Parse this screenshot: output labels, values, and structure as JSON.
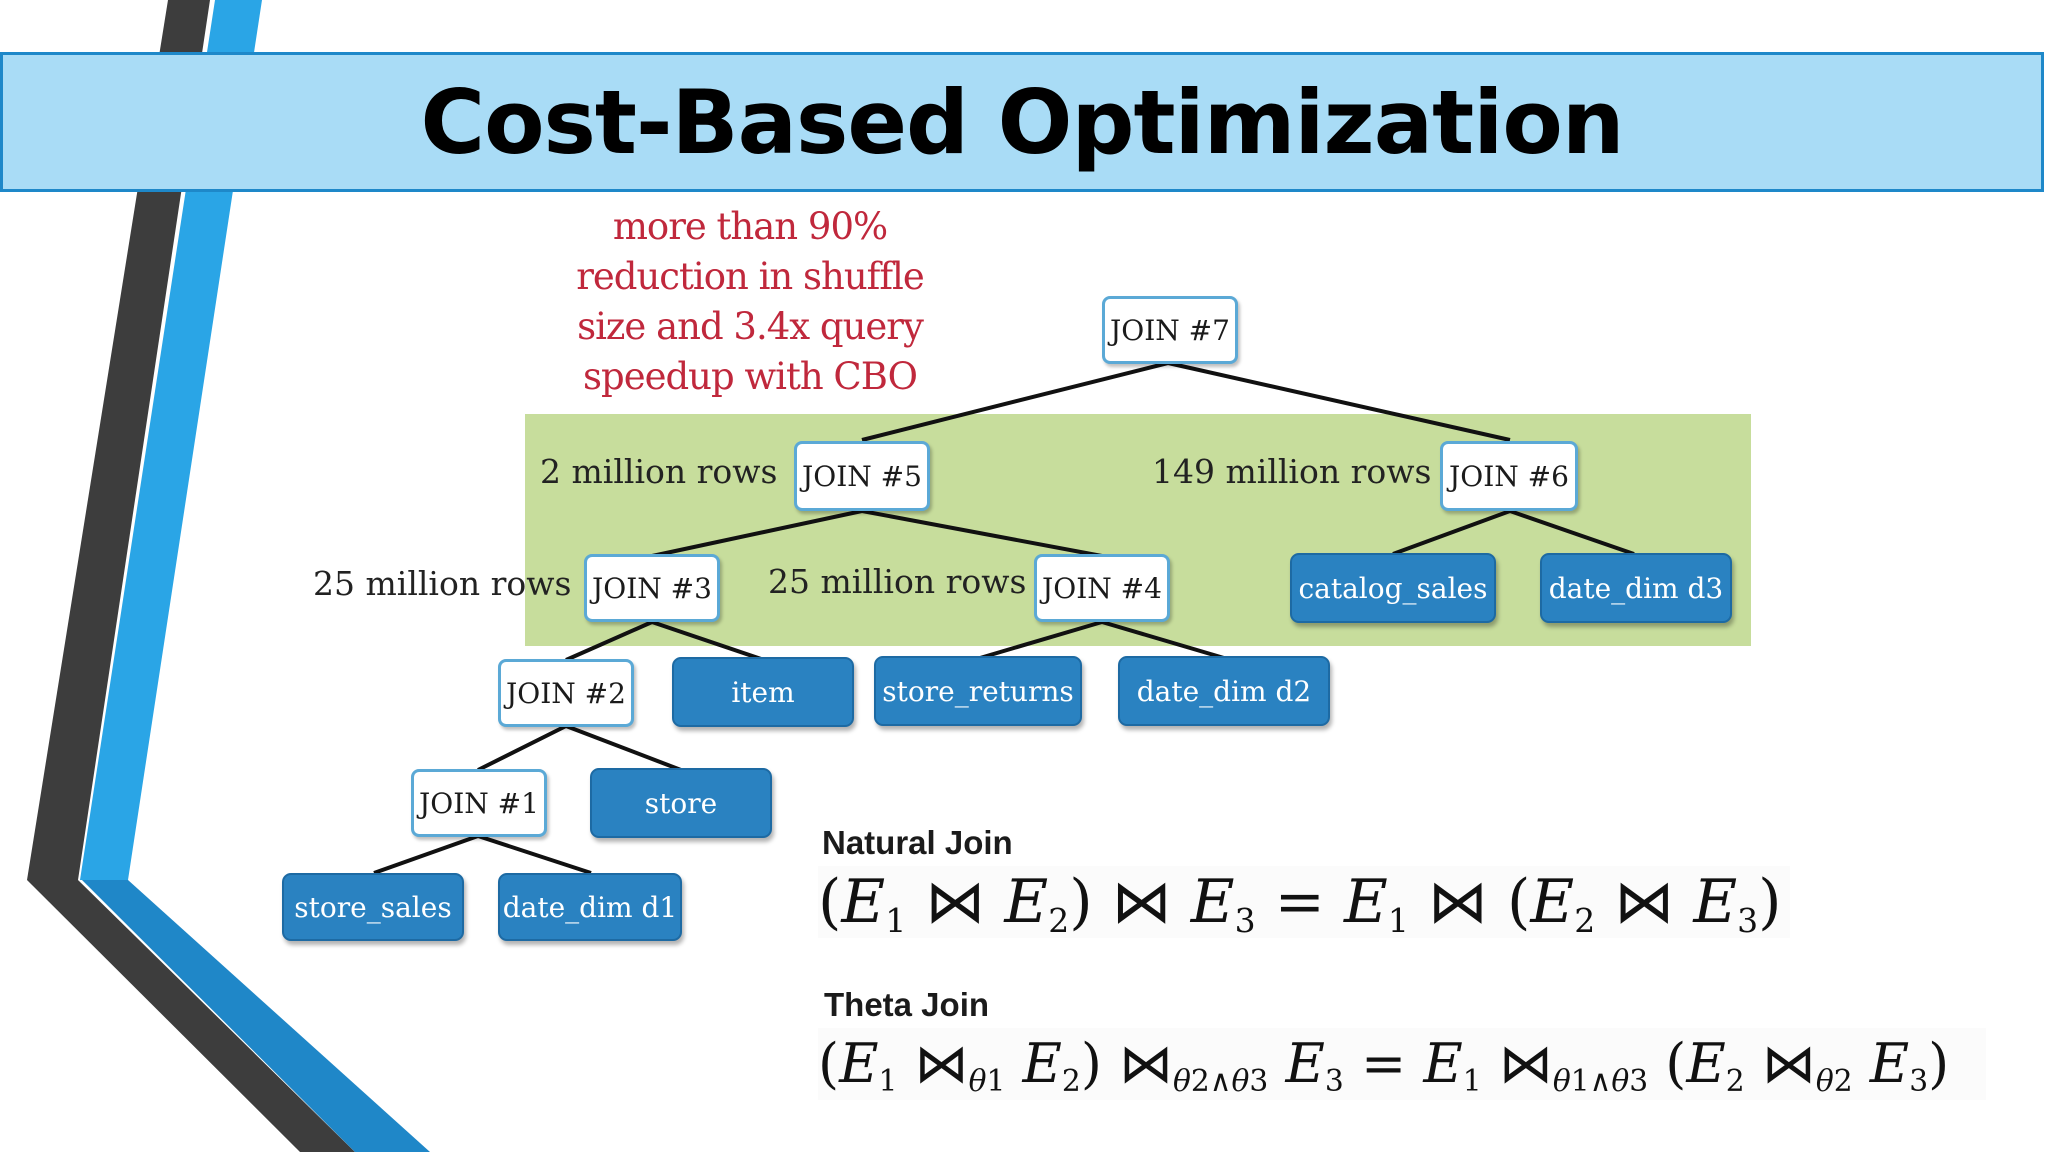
{
  "slide": {
    "title": "Cost-Based Optimization"
  },
  "note": {
    "lines": [
      "more than 90%",
      "reduction in shuffle",
      "size and 3.4x query",
      "speedup  with CBO"
    ]
  },
  "row_labels": {
    "join5": "2 million rows",
    "join6": "149 million rows",
    "join3": "25 million rows",
    "join4": "25 million rows"
  },
  "joins": {
    "j7": "JOIN #7",
    "j5": "JOIN #5",
    "j6": "JOIN #6",
    "j3": "JOIN #3",
    "j4": "JOIN #4",
    "j2": "JOIN #2",
    "j1": "JOIN #1"
  },
  "tables": {
    "catalog_sales": "catalog_sales",
    "date_dim_d3": "date_dim d3",
    "item": "item",
    "store_returns": "store_returns",
    "date_dim_d2": "date_dim d2",
    "store": "store",
    "store_sales": "store_sales",
    "date_dim_d1": "date_dim d1"
  },
  "equations": {
    "natural_label": "Natural Join",
    "theta_label": "Theta Join"
  },
  "colors": {
    "title_bg": "#a9dcf6",
    "title_border": "#1e88c9",
    "green_panel": "#c7dd9c",
    "table_node": "#2a82c1",
    "note_text": "#c0283c"
  }
}
